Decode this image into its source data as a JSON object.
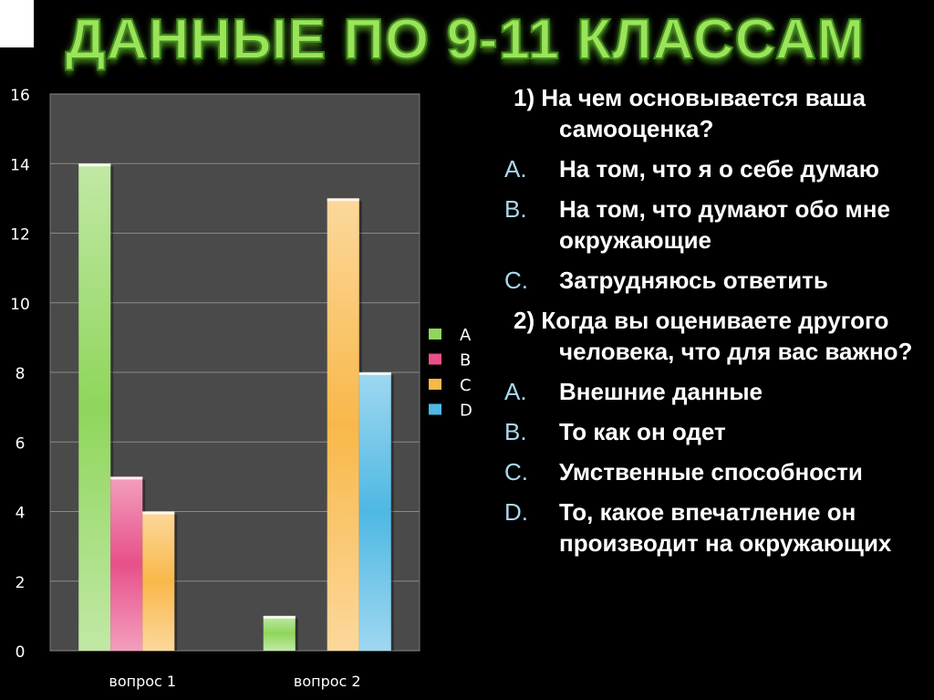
{
  "title": "ДАННЫЕ ПО 9-11 КЛАССАМ",
  "chart_data": {
    "type": "bar",
    "categories": [
      "вопрос 1",
      "вопрос 2"
    ],
    "series": [
      {
        "name": "A",
        "values": [
          14,
          1
        ],
        "color": "#8fd65c"
      },
      {
        "name": "B",
        "values": [
          5,
          0
        ],
        "color": "#e8508a"
      },
      {
        "name": "C",
        "values": [
          4,
          13
        ],
        "color": "#f9b84a"
      },
      {
        "name": "D",
        "values": [
          0,
          8
        ],
        "color": "#4fb8e3"
      }
    ],
    "ylim": [
      0,
      16
    ],
    "yticks": [
      "0",
      "2",
      "4",
      "6",
      "8",
      "10",
      "12",
      "14",
      "16"
    ],
    "grid": true,
    "legend": "right",
    "plot_background": "#4a4a4a"
  },
  "questions": [
    {
      "text": "1) На чем основывается ваша самооценка?",
      "options": [
        {
          "label": "A.",
          "text": "На том, что я о себе думаю"
        },
        {
          "label": "B.",
          "text": "На том, что думают обо мне окружающие"
        },
        {
          "label": "C.",
          "text": "Затрудняюсь ответить"
        }
      ]
    },
    {
      "text": "2) Когда вы оцениваете другого человека, что для вас важно?",
      "options": [
        {
          "label": "A.",
          "text": "Внешние данные"
        },
        {
          "label": "B.",
          "text": "То как он одет"
        },
        {
          "label": "C.",
          "text": "Умственные способности"
        },
        {
          "label": "D.",
          "text": "То, какое впечатление он производит на окружающих"
        }
      ]
    }
  ]
}
